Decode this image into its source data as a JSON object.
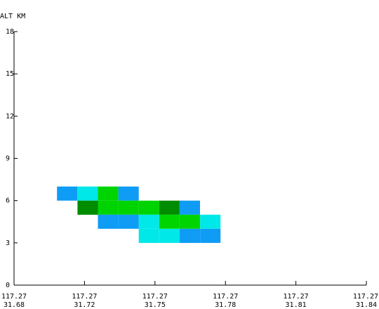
{
  "chart_data": {
    "type": "heatmap",
    "ylabel": "ALT KM",
    "ylim": [
      0,
      18
    ],
    "yticks": [
      "0",
      "3",
      "6",
      "9",
      "12",
      "15",
      "18"
    ],
    "xticks": [
      {
        "line1": "117.27",
        "line2": "31.68"
      },
      {
        "line1": "117.27",
        "line2": "31.72"
      },
      {
        "line1": "117.27",
        "line2": "31.75"
      },
      {
        "line1": "117.27",
        "line2": "31.78"
      },
      {
        "line1": "117.27",
        "line2": "31.81"
      },
      {
        "line1": "117.27",
        "line2": "31.84"
      }
    ],
    "grid": false,
    "colors": {
      "blue": "#0f9cf5",
      "cyan": "#00e8e8",
      "green": "#00d400",
      "darkgreen": "#008c00"
    },
    "cell_size": {
      "x_index": 0.29,
      "alt_km": 1.0
    },
    "cells": [
      {
        "xi": 0.61,
        "alt": 6.0,
        "color": "blue"
      },
      {
        "xi": 0.9,
        "alt": 6.0,
        "color": "cyan"
      },
      {
        "xi": 1.19,
        "alt": 6.0,
        "color": "green"
      },
      {
        "xi": 1.48,
        "alt": 6.0,
        "color": "blue"
      },
      {
        "xi": 0.9,
        "alt": 5.0,
        "color": "darkgreen"
      },
      {
        "xi": 1.19,
        "alt": 5.0,
        "color": "green"
      },
      {
        "xi": 1.48,
        "alt": 5.0,
        "color": "green"
      },
      {
        "xi": 1.77,
        "alt": 5.0,
        "color": "green"
      },
      {
        "xi": 2.06,
        "alt": 5.0,
        "color": "darkgreen"
      },
      {
        "xi": 2.35,
        "alt": 5.0,
        "color": "blue"
      },
      {
        "xi": 1.19,
        "alt": 4.0,
        "color": "blue"
      },
      {
        "xi": 1.48,
        "alt": 4.0,
        "color": "blue"
      },
      {
        "xi": 1.77,
        "alt": 4.0,
        "color": "cyan"
      },
      {
        "xi": 2.06,
        "alt": 4.0,
        "color": "green"
      },
      {
        "xi": 2.35,
        "alt": 4.0,
        "color": "green"
      },
      {
        "xi": 2.64,
        "alt": 4.0,
        "color": "cyan"
      },
      {
        "xi": 1.77,
        "alt": 3.0,
        "color": "cyan"
      },
      {
        "xi": 2.06,
        "alt": 3.0,
        "color": "cyan"
      },
      {
        "xi": 2.35,
        "alt": 3.0,
        "color": "blue"
      },
      {
        "xi": 2.64,
        "alt": 3.0,
        "color": "blue"
      }
    ]
  }
}
